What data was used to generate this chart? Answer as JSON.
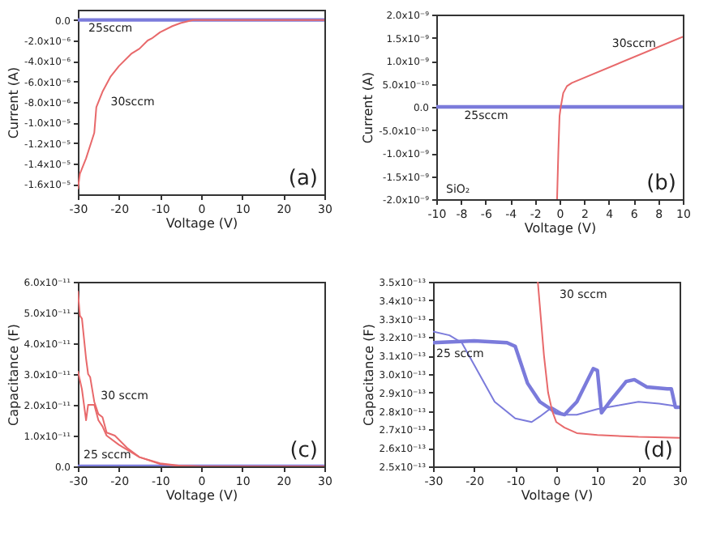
{
  "chart_data": [
    {
      "type": "line",
      "xlabel": "Voltage (V)",
      "ylabel": "Current (A)",
      "xlim": [
        -30,
        30
      ],
      "xticks": [
        -30,
        -20,
        -10,
        0,
        10,
        20,
        30
      ],
      "ylim": [
        -1.7e-05,
        1e-06
      ],
      "yticks": [
        {
          "value": 0,
          "label": "0.0"
        },
        {
          "value": -2e-06,
          "label": "-2.0x10⁻⁶"
        },
        {
          "value": -4e-06,
          "label": "-4.0x10⁻⁶"
        },
        {
          "value": -6e-06,
          "label": "-6.0x10⁻⁶"
        },
        {
          "value": -8e-06,
          "label": "-8.0x10⁻⁶"
        },
        {
          "value": -1e-05,
          "label": "-1.0x10⁻⁵"
        },
        {
          "value": -1.2e-05,
          "label": "-1.2x10⁻⁵"
        },
        {
          "value": -1.4e-05,
          "label": "-1.4x10⁻⁵"
        },
        {
          "value": -1.6e-05,
          "label": "-1.6x10⁻⁵"
        }
      ],
      "series": [
        {
          "name": "25sccm",
          "color": "#7b7bdb",
          "x": [
            -30,
            30
          ],
          "values": [
            0,
            0
          ]
        },
        {
          "name": "30sccm",
          "color": "#e8696b",
          "x": [
            -30,
            -29.5,
            -28,
            -26,
            -25.5,
            -24,
            -22,
            -20,
            -17,
            -15,
            -13,
            -12,
            -10,
            -7,
            -5,
            -2,
            30
          ],
          "values": [
            -1.65e-05,
            -1.5e-05,
            -1.35e-05,
            -1.1e-05,
            -8.5e-06,
            -7e-06,
            -5.5e-06,
            -4.5e-06,
            -3.3e-06,
            -2.8e-06,
            -2e-06,
            -1.8e-06,
            -1.2e-06,
            -6e-07,
            -3e-07,
            0,
            0
          ]
        }
      ],
      "annotations": [
        "(a)"
      ]
    },
    {
      "type": "line",
      "xlabel": "Voltage (V)",
      "ylabel": "Current (A)",
      "xlim": [
        -10,
        10
      ],
      "xticks": [
        -10,
        -8,
        -6,
        -4,
        -2,
        0,
        2,
        4,
        6,
        8,
        10
      ],
      "ylim": [
        -2e-09,
        2e-09
      ],
      "yticks": [
        {
          "value": 2e-09,
          "label": "2.0x10⁻⁹"
        },
        {
          "value": 1.5e-09,
          "label": "1.5x10⁻⁹"
        },
        {
          "value": 1e-09,
          "label": "1.0x10⁻⁹"
        },
        {
          "value": 5e-10,
          "label": "5.0x10⁻¹⁰"
        },
        {
          "value": 0,
          "label": "0.0"
        },
        {
          "value": -5e-10,
          "label": "-5.0x10⁻¹⁰"
        },
        {
          "value": -1e-09,
          "label": "-1.0x10⁻⁹"
        },
        {
          "value": -1.5e-09,
          "label": "-1.5x10⁻⁹"
        },
        {
          "value": -2e-09,
          "label": "-2.0x10⁻⁹"
        }
      ],
      "series": [
        {
          "name": "25sccm",
          "color": "#7b7bdb",
          "x": [
            -10,
            10
          ],
          "values": [
            0,
            0
          ]
        },
        {
          "name": "30sccm",
          "color": "#e8696b",
          "x": [
            -0.2,
            -0.1,
            0,
            0.1,
            0.3,
            0.6,
            1,
            10
          ],
          "values": [
            -2e-09,
            -1e-09,
            -2e-10,
            0,
            3e-10,
            4.5e-10,
            5.2e-10,
            1.52e-09
          ]
        }
      ],
      "annotations": [
        "SiO₂",
        "(b)"
      ]
    },
    {
      "type": "line",
      "xlabel": "Voltage (V)",
      "ylabel": "Capacitance (F)",
      "xlim": [
        -30,
        30
      ],
      "xticks": [
        -30,
        -20,
        -10,
        0,
        10,
        20,
        30
      ],
      "ylim": [
        0,
        6e-11
      ],
      "yticks": [
        {
          "value": 0,
          "label": "0.0"
        },
        {
          "value": 1e-11,
          "label": "1.0x10⁻¹¹"
        },
        {
          "value": 2e-11,
          "label": "2.0x10⁻¹¹"
        },
        {
          "value": 3e-11,
          "label": "3.0x10⁻¹¹"
        },
        {
          "value": 4e-11,
          "label": "4.0x10⁻¹¹"
        },
        {
          "value": 5e-11,
          "label": "5.0x10⁻¹¹"
        },
        {
          "value": 6e-11,
          "label": "6.0x10⁻¹¹"
        }
      ],
      "series": [
        {
          "name": "25 sccm",
          "color": "#7b7bdb",
          "x": [
            -30,
            30
          ],
          "values": [
            0,
            0
          ]
        },
        {
          "name": "30 sccm",
          "color": "#e8696b",
          "x": [
            -30,
            -29.5,
            -29,
            -28,
            -27.5,
            -27,
            -26,
            -25,
            -24,
            -23,
            -21,
            -18,
            -15,
            -10,
            -5,
            0,
            30
          ],
          "values": [
            5.7e-11,
            4.9e-11,
            4.8e-11,
            3.5e-11,
            3e-11,
            2.9e-11,
            2.1e-11,
            1.7e-11,
            1.6e-11,
            1.1e-11,
            1e-11,
            6e-12,
            3e-12,
            1e-12,
            2e-13,
            0,
            0
          ]
        },
        {
          "color": "#e8696b",
          "x": [
            -30,
            -29,
            -28,
            -27.5,
            -26,
            -25,
            -24,
            -23,
            -20,
            -15,
            -10,
            -5,
            0,
            30
          ],
          "values": [
            3.1e-11,
            2.5e-11,
            1.5e-11,
            2e-11,
            2e-11,
            1.5e-11,
            1.3e-11,
            1e-11,
            7e-12,
            3e-12,
            8e-13,
            1e-13,
            0,
            0
          ]
        }
      ],
      "annotations": [
        "(c)"
      ]
    },
    {
      "type": "line",
      "xlabel": "Voltage (V)",
      "ylabel": "Capacitance (F)",
      "xlim": [
        -30,
        30
      ],
      "xticks": [
        -30,
        -20,
        -10,
        0,
        10,
        20,
        30
      ],
      "ylim": [
        2.5e-13,
        3.5e-13
      ],
      "yticks": [
        {
          "value": 2.5e-13,
          "label": "2.5x10⁻¹³"
        },
        {
          "value": 2.6e-13,
          "label": "2.6x10⁻¹³"
        },
        {
          "value": 2.7e-13,
          "label": "2.7x10⁻¹³"
        },
        {
          "value": 2.8e-13,
          "label": "2.8x10⁻¹³"
        },
        {
          "value": 2.9e-13,
          "label": "2.9x10⁻¹³"
        },
        {
          "value": 3e-13,
          "label": "3.0x10⁻¹³"
        },
        {
          "value": 3.1e-13,
          "label": "3.1x10⁻¹³"
        },
        {
          "value": 3.2e-13,
          "label": "3.2x10⁻¹³"
        },
        {
          "value": 3.3e-13,
          "label": "3.3x10⁻¹³"
        },
        {
          "value": 3.4e-13,
          "label": "3.4x10⁻¹³"
        },
        {
          "value": 3.5e-13,
          "label": "3.5x10⁻¹³"
        }
      ],
      "series": [
        {
          "name": "25 sccm",
          "color": "#7b7bdb",
          "x": [
            -30,
            -20,
            -12,
            -10,
            -7,
            -4,
            -2,
            0,
            2,
            5,
            9,
            10,
            11,
            13,
            17,
            19,
            22,
            27,
            28,
            29,
            30
          ],
          "values": [
            3.17e-13,
            3.18e-13,
            3.17e-13,
            3.15e-13,
            2.95e-13,
            2.85e-13,
            2.82e-13,
            2.79e-13,
            2.78e-13,
            2.85e-13,
            3.03e-13,
            3.02e-13,
            2.79e-13,
            2.85e-13,
            2.96e-13,
            2.97e-13,
            2.93e-13,
            2.92e-13,
            2.92e-13,
            2.82e-13,
            2.82e-13
          ]
        },
        {
          "color": "#7b7bdb",
          "x": [
            -30,
            -26,
            -23,
            -20,
            -15,
            -10,
            -6,
            -4,
            -1,
            2,
            5,
            10,
            15,
            20,
            25,
            28,
            30
          ],
          "values": [
            3.23e-13,
            3.21e-13,
            3.17e-13,
            3.05e-13,
            2.85e-13,
            2.76e-13,
            2.74e-13,
            2.77e-13,
            2.82e-13,
            2.78e-13,
            2.78e-13,
            2.81e-13,
            2.83e-13,
            2.85e-13,
            2.84e-13,
            2.83e-13,
            2.82e-13
          ]
        },
        {
          "name": "30 sccm",
          "color": "#e8696b",
          "x": [
            -4.5,
            -3,
            -2,
            -1,
            0,
            2,
            5,
            10,
            20,
            30
          ],
          "values": [
            3.5e-13,
            3.1e-13,
            2.9e-13,
            2.8e-13,
            2.74e-13,
            2.71e-13,
            2.68e-13,
            2.67e-13,
            2.66e-13,
            2.655e-13
          ]
        }
      ],
      "annotations": [
        "(d)"
      ]
    }
  ]
}
